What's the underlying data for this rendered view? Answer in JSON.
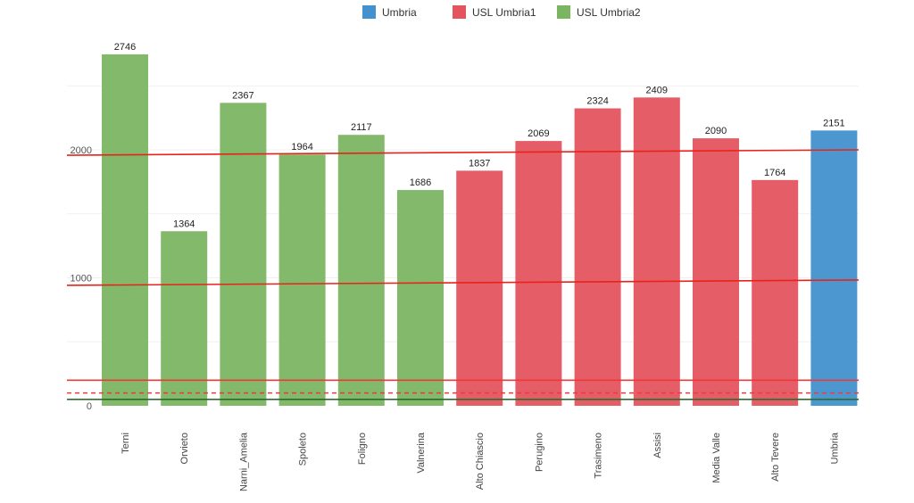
{
  "chart_data": {
    "type": "bar",
    "title": "",
    "xlabel": "",
    "ylabel": "",
    "ylim": [
      0,
      2800
    ],
    "yticks": [
      0,
      1000,
      2000
    ],
    "grid": true,
    "legend_position": "top-center",
    "legend": [
      {
        "name": "Umbria",
        "color": "#4391cf"
      },
      {
        "name": "USL Umbria1",
        "color": "#e4545f"
      },
      {
        "name": "USL Umbria2",
        "color": "#7cb562"
      }
    ],
    "categories": [
      "Terni",
      "Orvieto",
      "Narni_Amelia",
      "Spoleto",
      "Foligno",
      "Valnerina",
      "Alto Chiascio",
      "Perugino",
      "Trasimeno",
      "Assisi",
      "Media Valle",
      "Alto Tevere",
      "Umbria"
    ],
    "values": [
      2746,
      1364,
      2367,
      1964,
      2117,
      1686,
      1837,
      2069,
      2324,
      2409,
      2090,
      1764,
      2151
    ],
    "groups": [
      "USL Umbria2",
      "USL Umbria2",
      "USL Umbria2",
      "USL Umbria2",
      "USL Umbria2",
      "USL Umbria2",
      "USL Umbria1",
      "USL Umbria1",
      "USL Umbria1",
      "USL Umbria1",
      "USL Umbria1",
      "USL Umbria1",
      "Umbria"
    ],
    "reference_lines": [
      {
        "from": 1958,
        "to": 2000,
        "color": "#e8231a",
        "style": "solid"
      },
      {
        "from": 941,
        "to": 983,
        "color": "#e8231a",
        "style": "solid"
      },
      {
        "from": 200,
        "to": 200,
        "color": "#f0383a",
        "style": "solid"
      },
      {
        "from": 100,
        "to": 100,
        "color": "#f0383a",
        "style": "dashed"
      },
      {
        "from": 50,
        "to": 50,
        "color": "#2e6b2e",
        "style": "solid"
      }
    ]
  }
}
